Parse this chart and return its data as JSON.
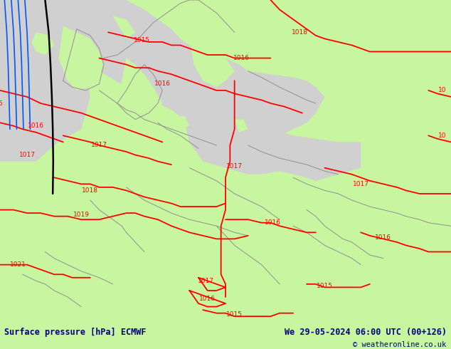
{
  "title_left": "Surface pressure [hPa] ECMWF",
  "title_right": "We 29-05-2024 06:00 UTC (00+126)",
  "copyright": "© weatheronline.co.uk",
  "bg_color_land": "#c8f5a0",
  "bg_color_sea": "#d0d0d0",
  "isobar_color": "#ff0000",
  "coastline_color": "#909090",
  "border_color": "#909090",
  "blue_line_color": "#0055ff",
  "black_line_color": "#000000",
  "figsize": [
    6.34,
    4.9
  ],
  "dpi": 100,
  "bottom_bar_height": 0.075,
  "bottom_bar_color": "#f0f0f0",
  "text_color": "#000080",
  "isobar_lw": 1.3,
  "coast_lw": 0.7
}
